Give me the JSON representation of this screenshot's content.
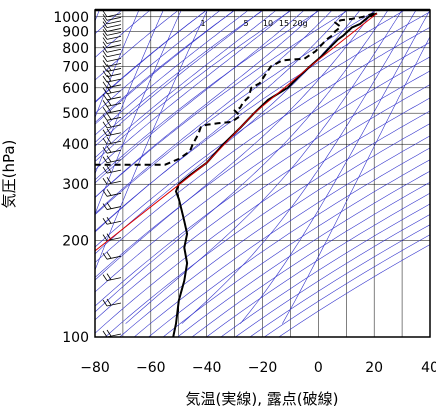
{
  "chart_data": {
    "type": "line",
    "title": "",
    "xlabel": "気温(実線), 露点(破線)",
    "ylabel": "気圧(hPa)",
    "x_range": [
      -80,
      40
    ],
    "y_range": [
      1050,
      100
    ],
    "y_scale": "log",
    "x_ticks": [
      -80,
      -60,
      -40,
      -20,
      0,
      20,
      40
    ],
    "y_ticks": [
      100,
      200,
      300,
      400,
      500,
      600,
      700,
      800,
      900,
      1000
    ],
    "mixing_ratio_labels": [
      "1",
      "5",
      "10",
      "15",
      "20g"
    ],
    "series": [
      {
        "role": "temperature",
        "style": "solid",
        "color": "#000000",
        "points": [
          [
            21,
            1025
          ],
          [
            18,
            1000
          ],
          [
            15,
            950
          ],
          [
            12,
            925
          ],
          [
            9,
            875
          ],
          [
            7,
            850
          ],
          [
            4,
            800
          ],
          [
            1,
            750
          ],
          [
            -3,
            700
          ],
          [
            -7,
            650
          ],
          [
            -11,
            600
          ],
          [
            -18,
            550
          ],
          [
            -23,
            500
          ],
          [
            -28,
            450
          ],
          [
            -34,
            400
          ],
          [
            -40,
            350
          ],
          [
            -46,
            320
          ],
          [
            -50,
            300
          ],
          [
            -51,
            285
          ],
          [
            -50,
            270
          ],
          [
            -49,
            250
          ],
          [
            -48,
            230
          ],
          [
            -47,
            210
          ],
          [
            -48,
            190
          ],
          [
            -47,
            170
          ],
          [
            -48,
            150
          ],
          [
            -50,
            130
          ],
          [
            -51,
            110
          ],
          [
            -52,
            100
          ]
        ]
      },
      {
        "role": "dewpoint",
        "style": "dashed",
        "color": "#000000",
        "points": [
          [
            20,
            1025
          ],
          [
            16,
            1000
          ],
          [
            12,
            985
          ],
          [
            8,
            975
          ],
          [
            6,
            960
          ],
          [
            8,
            930
          ],
          [
            6,
            900
          ],
          [
            5,
            875
          ],
          [
            3,
            850
          ],
          [
            -1,
            780
          ],
          [
            -5,
            740
          ],
          [
            -10,
            735
          ],
          [
            -13,
            730
          ],
          [
            -17,
            700
          ],
          [
            -19,
            660
          ],
          [
            -21,
            620
          ],
          [
            -24,
            600
          ],
          [
            -25,
            560
          ],
          [
            -27,
            540
          ],
          [
            -28,
            520
          ],
          [
            -30,
            510
          ],
          [
            -28,
            490
          ],
          [
            -31,
            470
          ],
          [
            -36,
            465
          ],
          [
            -40,
            460
          ],
          [
            -42,
            455
          ],
          [
            -43,
            430
          ],
          [
            -45,
            400
          ],
          [
            -46,
            380
          ],
          [
            -50,
            360
          ],
          [
            -55,
            345
          ],
          [
            -70,
            345
          ],
          [
            -80,
            345
          ]
        ]
      },
      {
        "role": "parcel",
        "style": "solid",
        "color": "#dd0000",
        "points": [
          [
            21,
            1025
          ],
          [
            -3,
            700
          ],
          [
            -23,
            500
          ],
          [
            -40,
            350
          ],
          [
            -82,
            180
          ]
        ]
      }
    ],
    "colors": {
      "temperature": "#000000",
      "dewpoint": "#000000",
      "parcel": "#dd0000",
      "background_lines": "#3333cc",
      "grid": "#000000",
      "wind_barbs": "#000000"
    },
    "grid": true,
    "wind_barbs": "left edge"
  }
}
